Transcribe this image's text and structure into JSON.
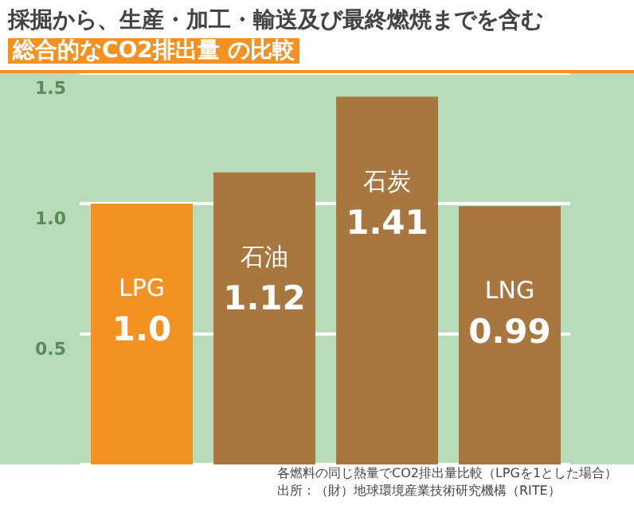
{
  "chart_data": {
    "type": "bar",
    "title": "採掘から、生産・加工・輸送及び最終燃焼までを含む",
    "subtitle": "総合的なCO2排出量 の比較",
    "categories": [
      "LPG",
      "石油",
      "石炭",
      "LNG"
    ],
    "values": [
      1.0,
      1.12,
      1.41,
      0.99
    ],
    "value_labels": [
      "1.0",
      "1.12",
      "1.41",
      "0.99"
    ],
    "colors": [
      "#f39223",
      "#a8773f",
      "#a8773f",
      "#a8773f"
    ],
    "ylim": [
      0,
      1.5
    ],
    "yticks": [
      {
        "value": 0.5,
        "label": "0.5"
      },
      {
        "value": 1,
        "label": "1.0"
      },
      {
        "value": 1.5,
        "label": "1.5"
      }
    ],
    "grid": "y",
    "tick_labels": "y",
    "annotations": [
      "各燃料の同じ熱量でCO2排出量比較（LPGを1とした場合）",
      "出所：（財）地球環境産業技術研究機構（RITE）"
    ]
  }
}
